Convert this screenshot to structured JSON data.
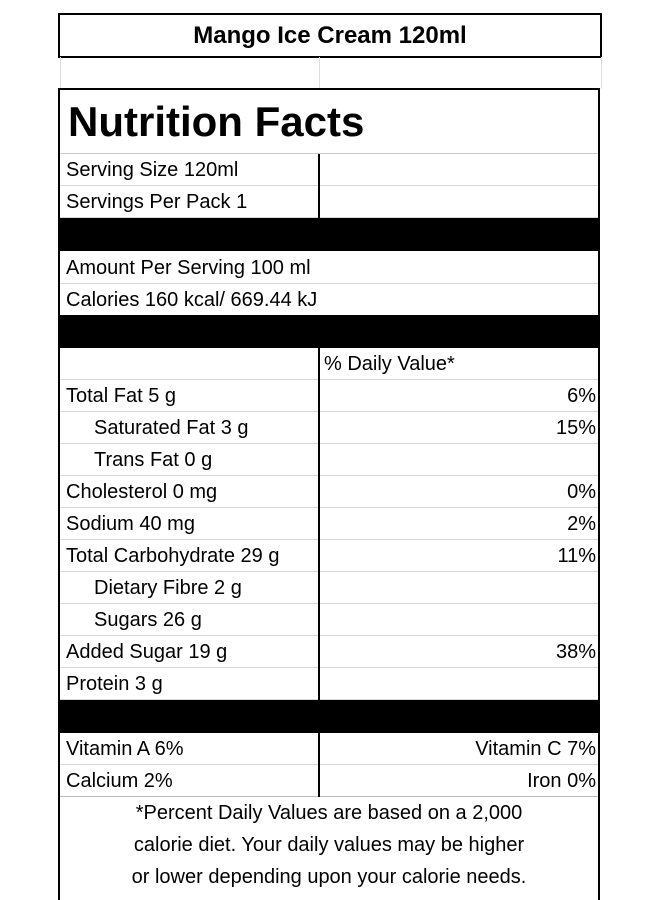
{
  "product_title": "Mango Ice Cream 120ml",
  "heading": "Nutrition Facts",
  "serving_size": "Serving Size 120ml",
  "servings_per_pack": "Servings Per Pack 1",
  "amount_per_serving": "Amount Per Serving  100 ml",
  "calories": "Calories   160 kcal/ 669.44 kJ",
  "daily_value_header": "% Daily Value*",
  "nutrients": [
    {
      "label": "Total Fat 5 g",
      "dv": "6%"
    },
    {
      "label": "Saturated Fat 3 g",
      "dv": "15%"
    },
    {
      "label": "Trans Fat 0 g",
      "dv": ""
    },
    {
      "label": "Cholesterol 0 mg",
      "dv": "0%"
    },
    {
      "label": "Sodium 40 mg",
      "dv": "2%"
    },
    {
      "label": "Total Carbohydrate 29 g",
      "dv": "11%"
    },
    {
      "label": "Dietary Fibre 2 g",
      "dv": ""
    },
    {
      "label": "Sugars 26 g",
      "dv": ""
    },
    {
      "label": "Added Sugar 19 g",
      "dv": "38%"
    },
    {
      "label": "Protein 3 g",
      "dv": ""
    }
  ],
  "vitamins": [
    {
      "left": "Vitamin A 6%",
      "right": "Vitamin C 7%"
    },
    {
      "left": "Calcium 2%",
      "right": "Iron 0%"
    }
  ],
  "footnote": [
    "*Percent Daily Values are based on a 2,000",
    "calorie diet. Your daily values may be higher",
    "or lower depending upon your calorie needs."
  ]
}
